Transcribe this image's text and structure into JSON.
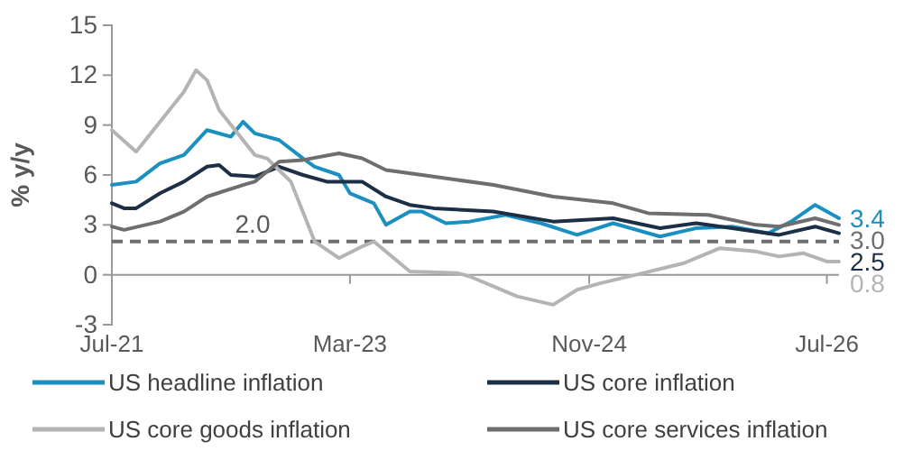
{
  "chart_data": {
    "type": "line",
    "ylabel": "% y/y",
    "xlim": [
      "2021-07",
      "2026-08"
    ],
    "ylim": [
      -3,
      15
    ],
    "yticks": [
      -3,
      0,
      3,
      6,
      9,
      12,
      15
    ],
    "xticks": [
      {
        "value": "2021-07",
        "label": "Jul-21"
      },
      {
        "value": "2023-03",
        "label": "Mar-23"
      },
      {
        "value": "2024-11",
        "label": "Nov-24"
      },
      {
        "value": "2026-07",
        "label": "Jul-26"
      }
    ],
    "grid": false,
    "legend": "bottom",
    "line_style": "solid",
    "marker": "none",
    "ref_lines": [
      {
        "axis": "y",
        "value": 2.0,
        "label": "2.0",
        "color": "#6e6e6e",
        "line_style": "dashed"
      }
    ],
    "series": [
      {
        "name": "US headline inflation",
        "color": "#1a8fc0",
        "x": [
          "2021-07",
          "2021-09",
          "2021-11",
          "2022-01",
          "2022-03",
          "2022-05",
          "2022-06",
          "2022-07",
          "2022-09",
          "2022-11",
          "2022-12",
          "2023-02",
          "2023-03",
          "2023-05",
          "2023-06",
          "2023-08",
          "2023-09",
          "2023-11",
          "2024-01",
          "2024-04",
          "2024-07",
          "2024-10",
          "2025-01",
          "2025-05",
          "2025-08",
          "2025-11",
          "2026-02",
          "2026-04",
          "2026-06",
          "2026-08"
        ],
        "values": [
          5.4,
          5.6,
          6.7,
          7.2,
          8.7,
          8.3,
          9.2,
          8.5,
          8.1,
          7.0,
          6.5,
          6.0,
          4.9,
          4.3,
          3.0,
          3.8,
          3.8,
          3.1,
          3.2,
          3.6,
          3.1,
          2.4,
          3.1,
          2.3,
          2.8,
          2.9,
          2.5,
          3.2,
          4.2,
          3.4
        ],
        "value_labels": [
          null,
          null,
          null,
          null,
          null,
          null,
          null,
          null,
          null,
          null,
          null,
          null,
          null,
          null,
          null,
          null,
          null,
          null,
          null,
          null,
          null,
          null,
          null,
          null,
          null,
          null,
          null,
          null,
          null,
          "3.4"
        ]
      },
      {
        "name": "US core inflation",
        "color": "#1c2f45",
        "x": [
          "2021-07",
          "2021-08",
          "2021-09",
          "2021-11",
          "2022-01",
          "2022-03",
          "2022-04",
          "2022-05",
          "2022-07",
          "2022-09",
          "2022-11",
          "2023-01",
          "2023-04",
          "2023-06",
          "2023-08",
          "2023-10",
          "2024-03",
          "2024-08",
          "2025-01",
          "2025-05",
          "2025-08",
          "2025-11",
          "2026-03",
          "2026-06",
          "2026-08"
        ],
        "values": [
          4.3,
          4.0,
          4.0,
          4.9,
          5.6,
          6.5,
          6.6,
          6.0,
          5.9,
          6.5,
          6.0,
          5.6,
          5.6,
          4.7,
          4.2,
          4.0,
          3.8,
          3.2,
          3.4,
          2.8,
          3.1,
          2.8,
          2.4,
          2.9,
          2.5
        ],
        "value_labels": [
          null,
          null,
          null,
          null,
          null,
          null,
          null,
          null,
          null,
          null,
          null,
          null,
          null,
          null,
          null,
          null,
          null,
          null,
          null,
          null,
          null,
          null,
          null,
          null,
          "2.5"
        ]
      },
      {
        "name": "US core goods inflation",
        "color": "#b4b4b4",
        "x": [
          "2021-07",
          "2021-09",
          "2021-11",
          "2022-01",
          "2022-02",
          "2022-03",
          "2022-04",
          "2022-07",
          "2022-08",
          "2022-10",
          "2022-12",
          "2023-02",
          "2023-04",
          "2023-05",
          "2023-08",
          "2023-12",
          "2024-01",
          "2024-05",
          "2024-08",
          "2024-10",
          "2024-12",
          "2025-03",
          "2025-07",
          "2025-10",
          "2026-01",
          "2026-03",
          "2026-05",
          "2026-07",
          "2026-08"
        ],
        "values": [
          8.7,
          7.4,
          9.2,
          11.0,
          12.3,
          11.7,
          9.9,
          7.2,
          7.0,
          5.6,
          2.0,
          1.0,
          1.7,
          2.0,
          0.2,
          0.1,
          -0.1,
          -1.3,
          -1.8,
          -0.9,
          -0.5,
          0,
          0.7,
          1.6,
          1.4,
          1.1,
          1.3,
          0.8,
          0.8
        ],
        "value_labels": [
          null,
          null,
          null,
          null,
          null,
          null,
          null,
          null,
          null,
          null,
          null,
          null,
          null,
          null,
          null,
          null,
          null,
          null,
          null,
          null,
          null,
          null,
          null,
          null,
          null,
          null,
          null,
          null,
          "0.8"
        ]
      },
      {
        "name": "US core services inflation",
        "color": "#6e6e6e",
        "x": [
          "2021-07",
          "2021-08",
          "2021-11",
          "2022-01",
          "2022-03",
          "2022-06",
          "2022-07",
          "2022-09",
          "2022-11",
          "2023-02",
          "2023-04",
          "2023-06",
          "2023-09",
          "2023-12",
          "2024-03",
          "2024-08",
          "2025-01",
          "2025-04",
          "2025-09",
          "2026-01",
          "2026-03",
          "2026-06",
          "2026-08"
        ],
        "values": [
          2.9,
          2.7,
          3.2,
          3.8,
          4.7,
          5.4,
          5.6,
          6.8,
          6.9,
          7.3,
          7.0,
          6.3,
          6.0,
          5.7,
          5.4,
          4.7,
          4.3,
          3.7,
          3.6,
          3.0,
          2.9,
          3.4,
          3.0
        ],
        "value_labels": [
          null,
          null,
          null,
          null,
          null,
          null,
          null,
          null,
          null,
          null,
          null,
          null,
          null,
          null,
          null,
          null,
          null,
          null,
          null,
          null,
          null,
          null,
          "3.0"
        ]
      }
    ]
  }
}
